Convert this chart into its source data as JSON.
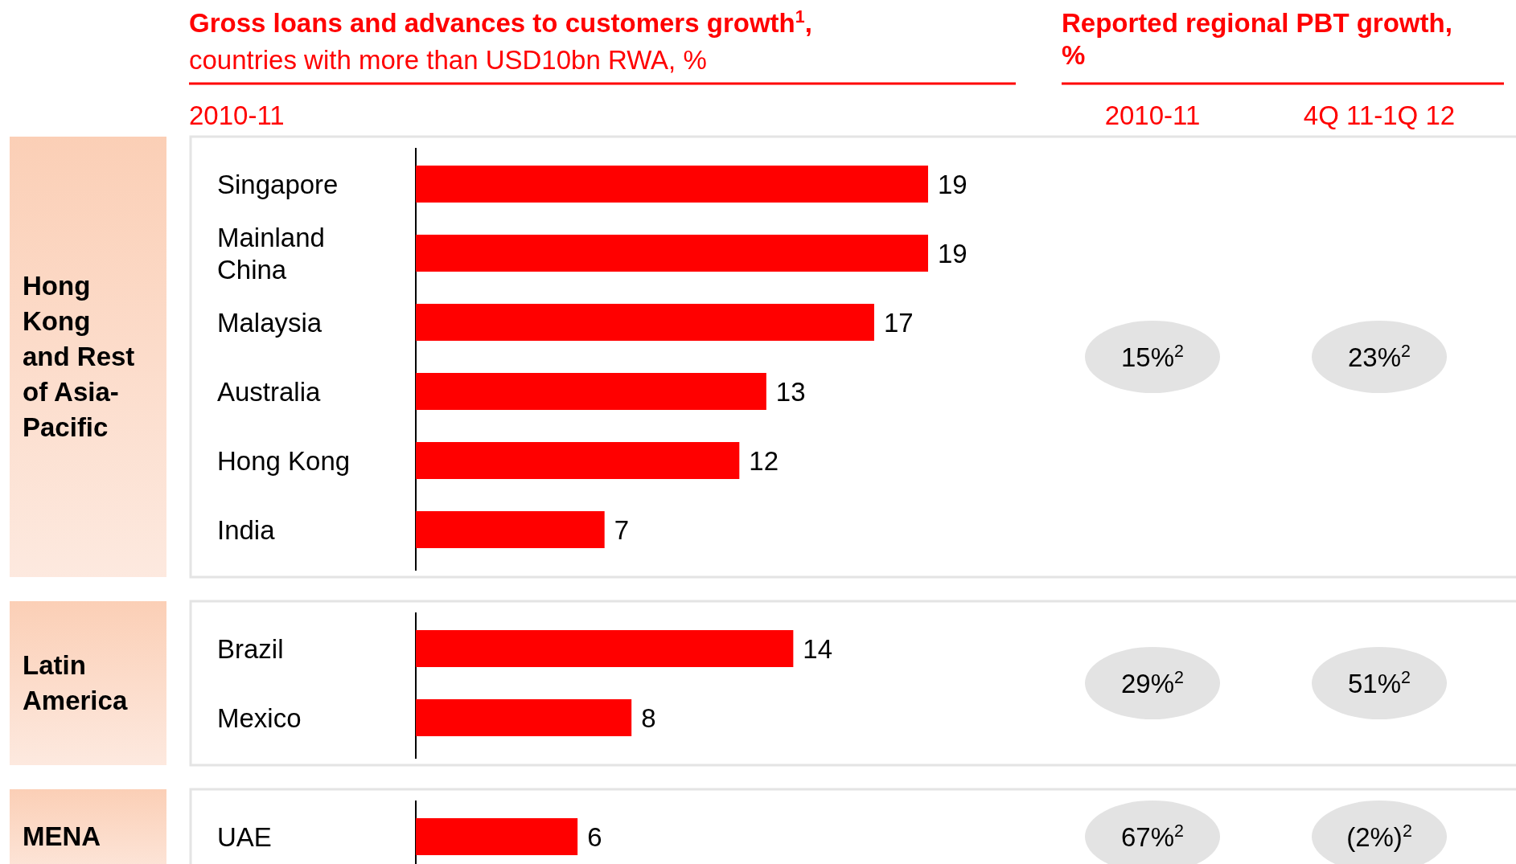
{
  "chart_data": [
    {
      "type": "other",
      "title": "Gross loans and advances to customers growth$^{1}$,",
      "subtitle": "countries with more than USD10bn RWA, %",
      "annotations": [
        "2010-11",
        "Reported regional PBT growth, %",
        "2010-11",
        "4Q 11-1Q 12"
      ]
    },
    {
      "type": "bar",
      "orientation": "horizontal",
      "title": "Hong Kong and Rest of Asia-Pacific",
      "categories": [
        "Singapore",
        "Mainland China",
        "Malaysia",
        "Australia",
        "Hong Kong",
        "India"
      ],
      "values": [
        19,
        19,
        17,
        13,
        12,
        7
      ],
      "color": "#ff0000",
      "data_labels": true,
      "annotations": [
        "15%$^{2}$",
        "23%$^{2}$"
      ]
    },
    {
      "type": "bar",
      "orientation": "horizontal",
      "title": "Latin America",
      "categories": [
        "Brazil",
        "Mexico"
      ],
      "values": [
        14,
        8
      ],
      "color": "#ff0000",
      "data_labels": true,
      "annotations": [
        "29%$^{2}$",
        "51%$^{2}$"
      ]
    },
    {
      "type": "bar",
      "orientation": "horizontal",
      "title": "MENA",
      "categories": [
        "UAE"
      ],
      "values": [
        6
      ],
      "color": "#ff0000",
      "data_labels": true,
      "annotations": [
        "67%$^{2}$",
        "(2%)$^{2}$"
      ]
    }
  ]
}
